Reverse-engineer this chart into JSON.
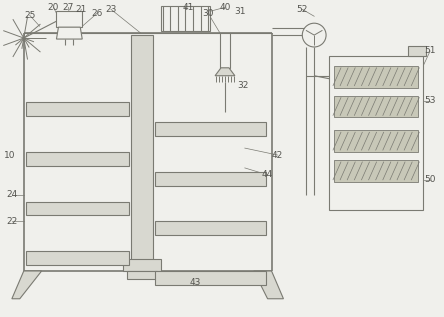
{
  "bg_color": "#f0f0ec",
  "line_color": "#7a7a72",
  "line_width": 0.8,
  "label_color": "#555550",
  "label_fontsize": 6.5,
  "fig_w": 4.44,
  "fig_h": 3.17
}
